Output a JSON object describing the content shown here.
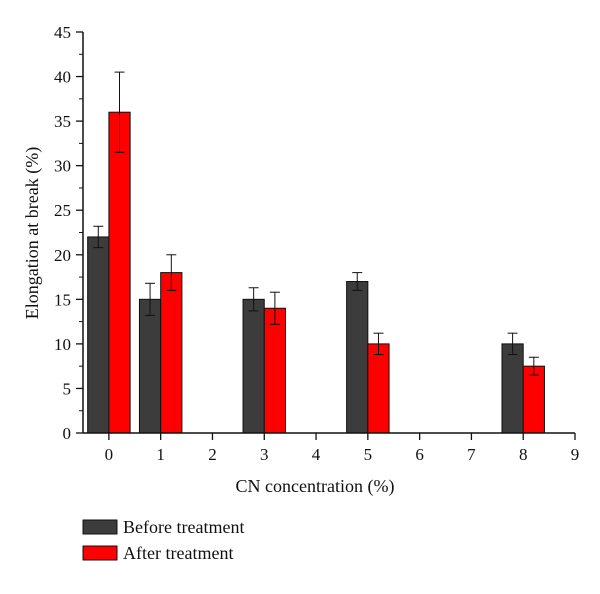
{
  "chart_data": {
    "type": "bar",
    "xlabel": "CN concentration (%)",
    "ylabel": "Elongation at break (%)",
    "xlim": [
      -0.5,
      9
    ],
    "ylim": [
      0,
      45
    ],
    "x_ticks": [
      0,
      1,
      2,
      3,
      4,
      5,
      6,
      7,
      8,
      9
    ],
    "y_ticks": [
      0,
      5,
      10,
      15,
      20,
      25,
      30,
      35,
      40,
      45
    ],
    "x_tick_labels": [
      "0",
      "1",
      "2",
      "3",
      "4",
      "5",
      "6",
      "7",
      "8",
      "9"
    ],
    "y_tick_labels": [
      "0",
      "5",
      "10",
      "15",
      "20",
      "25",
      "30",
      "35",
      "40",
      "45"
    ],
    "grid": false,
    "legend_position": "bottom-left",
    "series": [
      {
        "name": "Before treatment",
        "color": "#3c3c3c",
        "x": [
          0,
          1,
          3,
          5,
          8
        ],
        "values": [
          22,
          15,
          15,
          17,
          10
        ],
        "errors": [
          1.2,
          1.8,
          1.3,
          1.0,
          1.2
        ]
      },
      {
        "name": "After treatment",
        "color": "#ff0000",
        "x": [
          0,
          1,
          3,
          5,
          8
        ],
        "values": [
          36,
          18,
          14,
          10,
          7.5
        ],
        "errors": [
          4.5,
          2.0,
          1.8,
          1.2,
          1.0
        ]
      }
    ]
  }
}
